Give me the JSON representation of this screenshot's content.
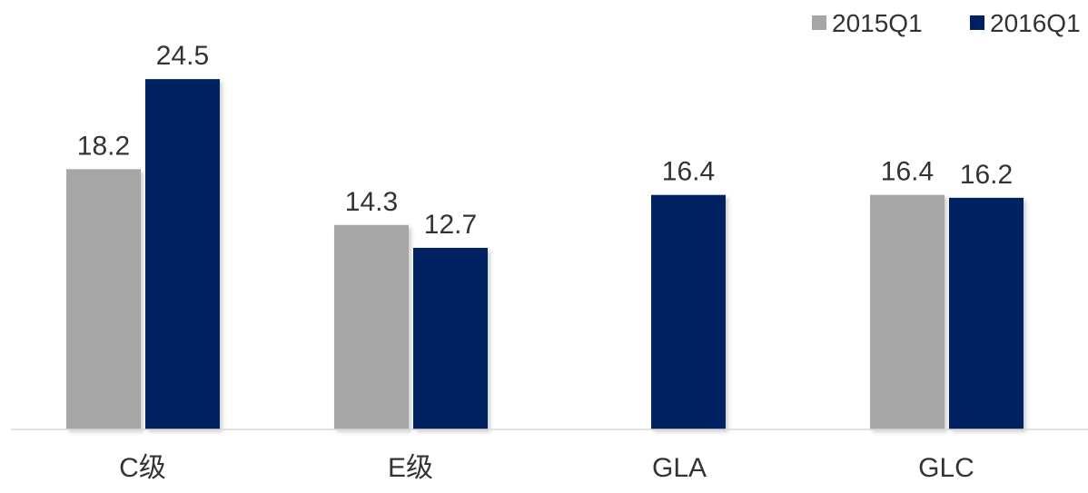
{
  "chart_data": {
    "type": "bar",
    "categories": [
      "C级",
      "E级",
      "GLA",
      "GLC"
    ],
    "series": [
      {
        "name": "2015Q1",
        "values": [
          18.2,
          14.3,
          null,
          16.4
        ],
        "color": "#a6a6a6"
      },
      {
        "name": "2016Q1",
        "values": [
          24.5,
          12.7,
          16.4,
          16.2
        ],
        "color": "#002060"
      }
    ],
    "title": "",
    "xlabel": "",
    "ylabel": "",
    "ylim": [
      0,
      30
    ],
    "grid": false,
    "legend": "top-right",
    "data_labels": true
  }
}
